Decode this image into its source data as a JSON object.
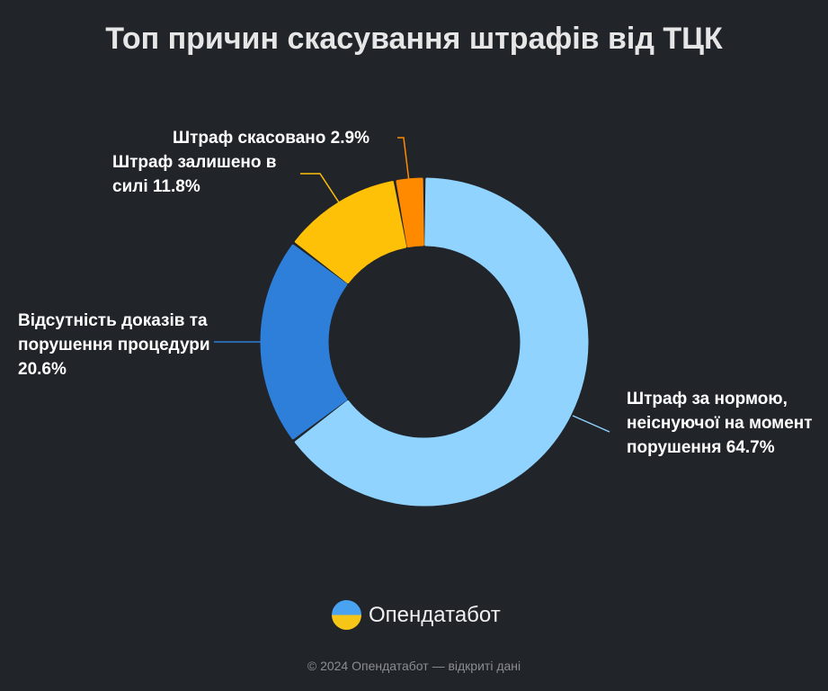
{
  "title": "Топ причин скасування штрафів від ТЦК",
  "chart_data": {
    "type": "pie",
    "donut": true,
    "title": "Топ причин скасування штрафів від ТЦК",
    "slices": [
      {
        "label": "Штраф за нормою, неіснуючої на момент порушення",
        "value": 64.7,
        "display": "64.7%",
        "color": "#8fd3fe"
      },
      {
        "label": "Відсутність доказів та порушення процедури",
        "value": 20.6,
        "display": "20.6%",
        "color": "#2e7fd9"
      },
      {
        "label": "Штраф залишено в силі",
        "value": 11.8,
        "display": "11.8%",
        "color": "#ffc107"
      },
      {
        "label": "Штраф скасовано",
        "value": 2.9,
        "display": "2.9%",
        "color": "#ff8a00"
      }
    ]
  },
  "brand": {
    "name": "Опендатабот"
  },
  "footer": "© 2024 Опендатабот — відкриті дані"
}
